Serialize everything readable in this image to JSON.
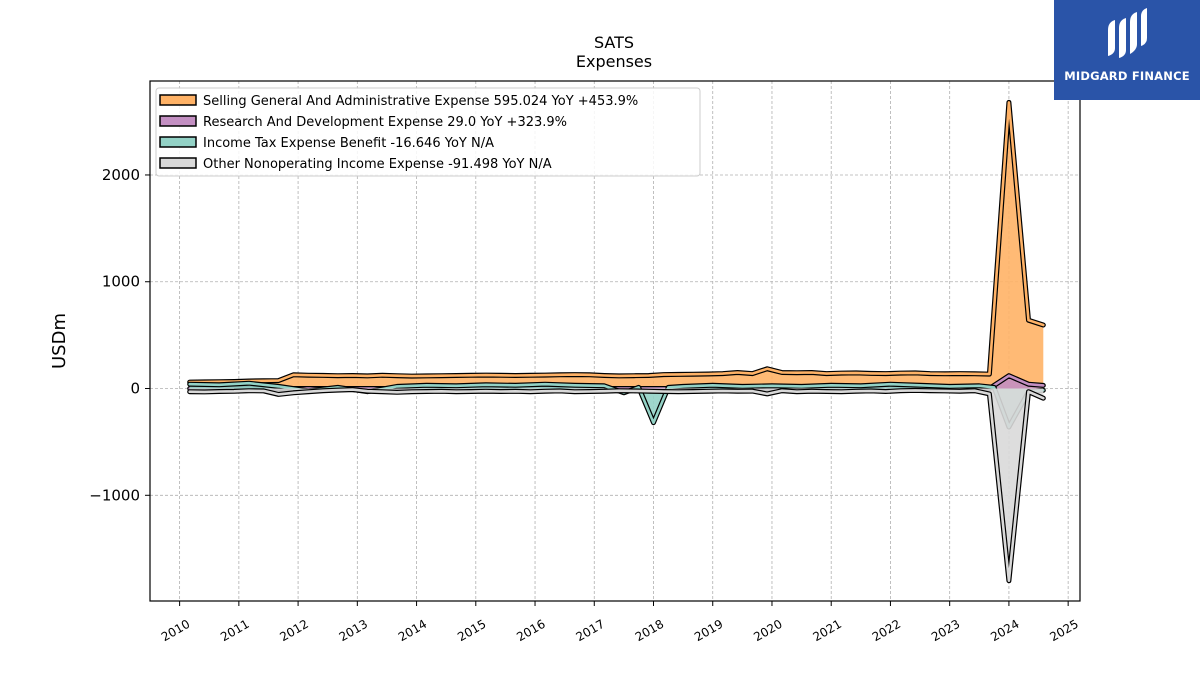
{
  "chart_data": {
    "type": "area",
    "title": "SATS",
    "subtitle": "Expenses",
    "ylabel": "USDm",
    "xlim": [
      2009.5,
      2025.2
    ],
    "ylim": [
      -1990,
      2880
    ],
    "x_ticks": [
      "2010",
      "2011",
      "2012",
      "2013",
      "2014",
      "2015",
      "2016",
      "2017",
      "2018",
      "2019",
      "2020",
      "2021",
      "2022",
      "2023",
      "2024",
      "2025"
    ],
    "y_ticks": [
      {
        "value": 2000,
        "label": "2000"
      },
      {
        "value": 1000,
        "label": "1000"
      },
      {
        "value": 0,
        "label": "0"
      },
      {
        "value": -1000,
        "label": "−1000"
      }
    ],
    "grid": true,
    "legend_position": "top-left",
    "series": [
      {
        "name": "Selling General And Administrative Expense  595.024 YoY +453.9%",
        "color": "#ffb266",
        "x": [
          2010.17,
          2010.42,
          2010.67,
          2010.92,
          2011.17,
          2011.42,
          2011.67,
          2011.92,
          2012.17,
          2012.42,
          2012.67,
          2012.92,
          2013.17,
          2013.42,
          2013.67,
          2013.92,
          2014.17,
          2014.42,
          2014.67,
          2014.92,
          2015.17,
          2015.42,
          2015.67,
          2015.92,
          2016.17,
          2016.42,
          2016.67,
          2016.92,
          2017.17,
          2017.42,
          2017.67,
          2017.92,
          2018.17,
          2018.42,
          2018.67,
          2018.92,
          2019.17,
          2019.42,
          2019.67,
          2019.92,
          2020.17,
          2020.42,
          2020.67,
          2020.92,
          2021.17,
          2021.42,
          2021.67,
          2021.92,
          2022.17,
          2022.42,
          2022.67,
          2022.92,
          2023.17,
          2023.42,
          2023.67,
          2024.0,
          2024.33,
          2024.58
        ],
        "values": [
          60,
          62,
          64,
          66,
          70,
          72,
          74,
          128,
          125,
          123,
          120,
          122,
          118,
          124,
          120,
          116,
          118,
          120,
          122,
          124,
          126,
          124,
          122,
          124,
          126,
          128,
          130,
          128,
          122,
          118,
          120,
          122,
          130,
          132,
          134,
          136,
          140,
          150,
          140,
          185,
          150,
          148,
          150,
          140,
          144,
          146,
          142,
          140,
          144,
          146,
          140,
          138,
          140,
          138,
          135,
          2680,
          640,
          595
        ]
      },
      {
        "name": "Research And Development Expense  29.0 YoY +323.9%",
        "color": "#c38fc2",
        "x": [
          2010.17,
          2011.17,
          2012.17,
          2013.17,
          2014.17,
          2015.17,
          2016.17,
          2017.17,
          2018.17,
          2019.17,
          2020.17,
          2021.17,
          2022.17,
          2023.17,
          2023.67,
          2024.0,
          2024.33,
          2024.58
        ],
        "values": [
          0,
          0,
          0,
          0,
          0,
          0,
          0,
          0,
          0,
          0,
          0,
          0,
          0,
          0,
          0,
          120,
          40,
          29
        ]
      },
      {
        "name": "Income Tax Expense Benefit  -16.646 YoY N/A",
        "color": "#93d2c6",
        "x": [
          2010.17,
          2010.67,
          2011.17,
          2011.67,
          2012.17,
          2012.67,
          2013.17,
          2013.67,
          2014.17,
          2014.67,
          2015.17,
          2015.67,
          2016.17,
          2016.67,
          2017.17,
          2017.5,
          2017.75,
          2018.0,
          2018.25,
          2018.5,
          2019.0,
          2019.5,
          2020.0,
          2020.5,
          2021.0,
          2021.5,
          2022.0,
          2022.5,
          2023.0,
          2023.5,
          2023.75,
          2024.0,
          2024.33,
          2024.58
        ],
        "values": [
          40,
          35,
          50,
          20,
          -20,
          10,
          -30,
          20,
          30,
          25,
          35,
          30,
          40,
          30,
          25,
          -40,
          10,
          -320,
          10,
          20,
          30,
          20,
          25,
          20,
          30,
          25,
          40,
          30,
          20,
          25,
          10,
          -360,
          -30,
          -17
        ]
      },
      {
        "name": "Other Nonoperating Income Expense  -91.498 YoY N/A",
        "color": "#d9d9d9",
        "x": [
          2010.17,
          2010.42,
          2010.67,
          2010.92,
          2011.17,
          2011.42,
          2011.67,
          2011.92,
          2012.17,
          2012.42,
          2012.67,
          2012.92,
          2013.17,
          2013.42,
          2013.67,
          2013.92,
          2014.17,
          2014.42,
          2014.67,
          2014.92,
          2015.17,
          2015.42,
          2015.67,
          2015.92,
          2016.17,
          2016.42,
          2016.67,
          2016.92,
          2017.17,
          2017.42,
          2017.67,
          2017.92,
          2018.17,
          2018.42,
          2018.67,
          2018.92,
          2019.17,
          2019.42,
          2019.67,
          2019.92,
          2020.17,
          2020.42,
          2020.67,
          2020.92,
          2021.17,
          2021.42,
          2021.67,
          2021.92,
          2022.17,
          2022.42,
          2022.67,
          2022.92,
          2023.17,
          2023.42,
          2023.67,
          2024.0,
          2024.33,
          2024.58
        ],
        "values": [
          -30,
          -32,
          -28,
          -26,
          -20,
          -22,
          -55,
          -40,
          -30,
          -20,
          -15,
          -10,
          -25,
          -30,
          -35,
          -30,
          -28,
          -26,
          -30,
          -28,
          -25,
          -28,
          -26,
          -30,
          -25,
          -22,
          -30,
          -28,
          -25,
          -20,
          -22,
          -25,
          -28,
          -30,
          -28,
          -25,
          -22,
          -25,
          -24,
          -50,
          -20,
          -30,
          -25,
          -28,
          -30,
          -25,
          -22,
          -28,
          -20,
          -18,
          -20,
          -22,
          -25,
          -20,
          -50,
          -1800,
          -30,
          -91
        ]
      }
    ]
  },
  "logo": {
    "text": "MIDGARD FINANCE",
    "background": "#2a54a8"
  }
}
